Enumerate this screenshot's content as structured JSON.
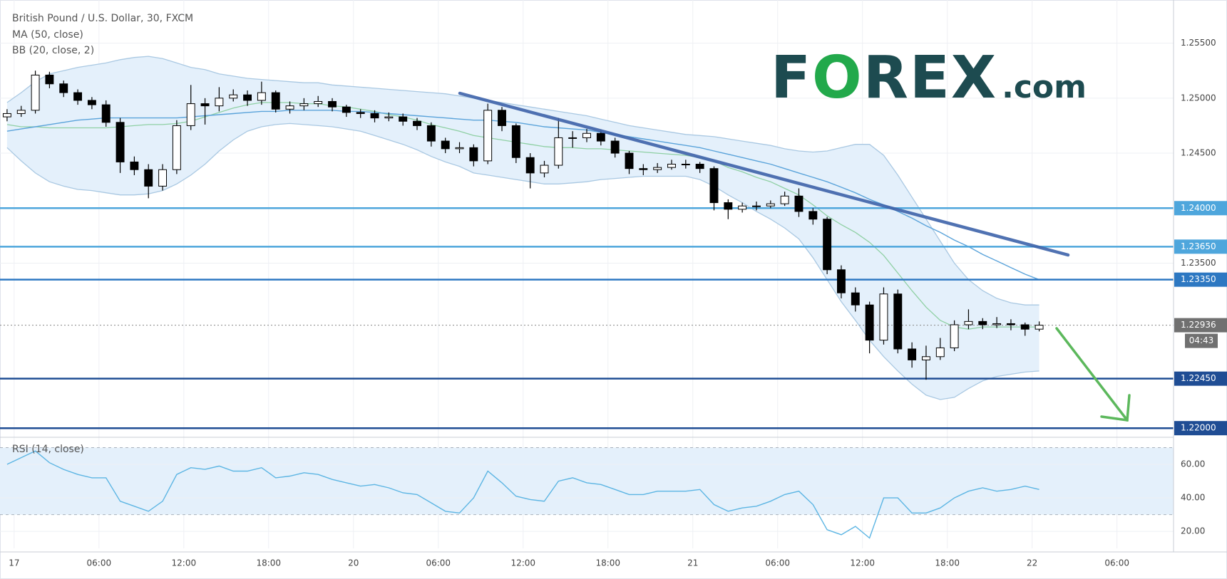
{
  "chart_data": [
    {
      "type": "candlestick",
      "title": "British Pound / U.S. Dollar, 30, FXCM",
      "indicator_labels": [
        "MA (50, close)",
        "BB (20, close, 2)"
      ],
      "open": [
        1.2483,
        1.2486,
        1.2489,
        1.2521,
        1.2513,
        1.2505,
        1.2498,
        1.2494,
        1.2478,
        1.2442,
        1.2435,
        1.242,
        1.2435,
        1.2475,
        1.2495,
        1.2493,
        1.25,
        1.2503,
        1.2498,
        1.2505,
        1.249,
        1.2493,
        1.2495,
        1.2497,
        1.2492,
        1.2487,
        1.2486,
        1.2482,
        1.2483,
        1.2479,
        1.2475,
        1.2461,
        1.2454,
        1.2455,
        1.2443,
        1.2489,
        1.2475,
        1.2446,
        1.2432,
        1.2439,
        1.2464,
        1.2464,
        1.2468,
        1.2461,
        1.245,
        1.2436,
        1.2435,
        1.2437,
        1.244,
        1.244,
        1.2436,
        1.2405,
        1.2399,
        1.2402,
        1.2402,
        1.2404,
        1.2411,
        1.2397,
        1.239,
        1.2344,
        1.2323,
        1.2312,
        1.228,
        1.2322,
        1.2272,
        1.2262,
        1.2265,
        1.2273,
        1.2294,
        1.2297,
        1.2294,
        1.2295,
        1.2294,
        1.229
      ],
      "high": [
        1.249,
        1.2493,
        1.2525,
        1.2524,
        1.2516,
        1.2508,
        1.2501,
        1.2498,
        1.2482,
        1.2447,
        1.244,
        1.244,
        1.248,
        1.2512,
        1.25,
        1.251,
        1.2508,
        1.2507,
        1.2515,
        1.2507,
        1.2497,
        1.25,
        1.2502,
        1.25,
        1.2494,
        1.249,
        1.2489,
        1.2487,
        1.2486,
        1.2482,
        1.2478,
        1.2464,
        1.246,
        1.2458,
        1.2495,
        1.2492,
        1.2477,
        1.245,
        1.2443,
        1.2482,
        1.247,
        1.2472,
        1.2471,
        1.2464,
        1.2452,
        1.244,
        1.2441,
        1.2444,
        1.2444,
        1.2442,
        1.2438,
        1.2408,
        1.2405,
        1.2406,
        1.2407,
        1.2415,
        1.2418,
        1.24,
        1.2392,
        1.2348,
        1.2328,
        1.2315,
        1.2328,
        1.2326,
        1.2278,
        1.2275,
        1.2282,
        1.2298,
        1.2308,
        1.23,
        1.2301,
        1.2299,
        1.2296,
        1.2297
      ],
      "low": [
        1.2479,
        1.2483,
        1.2486,
        1.2509,
        1.2501,
        1.2494,
        1.249,
        1.2474,
        1.2432,
        1.243,
        1.2409,
        1.2416,
        1.2431,
        1.2471,
        1.2476,
        1.2488,
        1.2497,
        1.2493,
        1.2494,
        1.2487,
        1.2486,
        1.2489,
        1.2492,
        1.2488,
        1.2483,
        1.2482,
        1.2478,
        1.2479,
        1.2475,
        1.2471,
        1.2456,
        1.245,
        1.245,
        1.2438,
        1.244,
        1.247,
        1.2441,
        1.2418,
        1.2428,
        1.2436,
        1.2455,
        1.246,
        1.2457,
        1.2446,
        1.2431,
        1.243,
        1.2432,
        1.2435,
        1.2436,
        1.2432,
        1.2398,
        1.239,
        1.2396,
        1.2398,
        1.24,
        1.2402,
        1.2392,
        1.2385,
        1.234,
        1.2318,
        1.2306,
        1.2268,
        1.2276,
        1.2268,
        1.2255,
        1.2244,
        1.2262,
        1.227,
        1.229,
        1.229,
        1.2291,
        1.2289,
        1.2284,
        1.2288
      ],
      "close": [
        1.2486,
        1.2489,
        1.2521,
        1.2513,
        1.2505,
        1.2498,
        1.2494,
        1.2478,
        1.2442,
        1.2435,
        1.242,
        1.2435,
        1.2475,
        1.2495,
        1.2493,
        1.25,
        1.2503,
        1.2498,
        1.2505,
        1.249,
        1.2493,
        1.2495,
        1.2497,
        1.2492,
        1.2487,
        1.2486,
        1.2482,
        1.2483,
        1.2479,
        1.2475,
        1.2461,
        1.2454,
        1.2455,
        1.2443,
        1.2489,
        1.2475,
        1.2446,
        1.2432,
        1.2439,
        1.2464,
        1.2464,
        1.2468,
        1.2461,
        1.245,
        1.2436,
        1.2435,
        1.2437,
        1.244,
        1.244,
        1.2436,
        1.2405,
        1.2399,
        1.2402,
        1.2402,
        1.2404,
        1.2411,
        1.2397,
        1.239,
        1.2344,
        1.2323,
        1.2312,
        1.228,
        1.2322,
        1.2272,
        1.2262,
        1.2265,
        1.2273,
        1.2294,
        1.2297,
        1.2294,
        1.2295,
        1.2294,
        1.229,
        1.22936
      ],
      "bb": {
        "color": "#a9c8e2",
        "fill": "#e4f0fb",
        "basis_color": "#8fd0a4",
        "upper": [
          1.2496,
          1.2505,
          1.2515,
          1.2522,
          1.2525,
          1.2528,
          1.253,
          1.2532,
          1.2535,
          1.2537,
          1.2538,
          1.2536,
          1.2532,
          1.2528,
          1.2526,
          1.2522,
          1.252,
          1.2518,
          1.2517,
          1.2516,
          1.2515,
          1.2514,
          1.2514,
          1.2512,
          1.2511,
          1.251,
          1.2509,
          1.2508,
          1.2507,
          1.2506,
          1.2505,
          1.2504,
          1.2502,
          1.25,
          1.2498,
          1.2496,
          1.2494,
          1.2492,
          1.249,
          1.2488,
          1.2486,
          1.2484,
          1.2481,
          1.2478,
          1.2475,
          1.2473,
          1.2471,
          1.2469,
          1.2467,
          1.2466,
          1.2465,
          1.2463,
          1.2461,
          1.2459,
          1.2457,
          1.2454,
          1.2452,
          1.2451,
          1.2452,
          1.2455,
          1.2458,
          1.2458,
          1.2448,
          1.243,
          1.241,
          1.239,
          1.237,
          1.235,
          1.2335,
          1.2325,
          1.2318,
          1.2314,
          1.2312,
          1.2312
        ],
        "basis": [
          1.2476,
          1.2474,
          1.2474,
          1.2473,
          1.2473,
          1.2473,
          1.2473,
          1.2473,
          1.2474,
          1.2475,
          1.2476,
          1.2476,
          1.2477,
          1.2479,
          1.2483,
          1.2487,
          1.2491,
          1.2494,
          1.2496,
          1.2496,
          1.2496,
          1.2495,
          1.2495,
          1.2493,
          1.2492,
          1.249,
          1.2488,
          1.2485,
          1.2483,
          1.248,
          1.2476,
          1.2473,
          1.247,
          1.2466,
          1.2464,
          1.2462,
          1.246,
          1.2458,
          1.2456,
          1.2455,
          1.2455,
          1.2454,
          1.2454,
          1.2453,
          1.2452,
          1.2451,
          1.245,
          1.2449,
          1.2448,
          1.2446,
          1.2443,
          1.2437,
          1.2433,
          1.2428,
          1.2424,
          1.2418,
          1.2412,
          1.2403,
          1.2393,
          1.2385,
          1.2378,
          1.2369,
          1.2357,
          1.2341,
          1.2325,
          1.231,
          1.2298,
          1.2292,
          1.229,
          1.2292,
          1.2292,
          1.2292,
          1.2292,
          1.2292
        ],
        "lower": [
          1.2455,
          1.2443,
          1.2432,
          1.2424,
          1.242,
          1.2417,
          1.2416,
          1.2414,
          1.2412,
          1.2412,
          1.2413,
          1.2416,
          1.2422,
          1.243,
          1.244,
          1.2452,
          1.2462,
          1.247,
          1.2474,
          1.2476,
          1.2477,
          1.2476,
          1.2475,
          1.2474,
          1.2472,
          1.247,
          1.2466,
          1.2462,
          1.2458,
          1.2453,
          1.2447,
          1.2442,
          1.2438,
          1.2432,
          1.243,
          1.2428,
          1.2426,
          1.2424,
          1.2422,
          1.2422,
          1.2423,
          1.2424,
          1.2426,
          1.2427,
          1.2428,
          1.2429,
          1.2429,
          1.2429,
          1.2429,
          1.2426,
          1.242,
          1.2412,
          1.2405,
          1.2397,
          1.239,
          1.2382,
          1.2372,
          1.2355,
          1.2335,
          1.2315,
          1.2298,
          1.228,
          1.2265,
          1.2252,
          1.224,
          1.223,
          1.2226,
          1.2228,
          1.2236,
          1.2243,
          1.2247,
          1.2249,
          1.2251,
          1.2252
        ]
      },
      "ma50": {
        "color": "#5aa3da",
        "values": [
          1.247,
          1.2472,
          1.2474,
          1.2476,
          1.2478,
          1.248,
          1.2481,
          1.2482,
          1.2482,
          1.2482,
          1.2482,
          1.2482,
          1.2482,
          1.2483,
          1.2484,
          1.2485,
          1.2486,
          1.2487,
          1.2488,
          1.2488,
          1.2489,
          1.2489,
          1.2489,
          1.2489,
          1.2488,
          1.2488,
          1.2487,
          1.2486,
          1.2485,
          1.2484,
          1.2483,
          1.2482,
          1.2481,
          1.248,
          1.248,
          1.2479,
          1.2478,
          1.2476,
          1.2474,
          1.2473,
          1.2472,
          1.2471,
          1.2469,
          1.2467,
          1.2465,
          1.2463,
          1.2461,
          1.2459,
          1.2457,
          1.2455,
          1.2452,
          1.2449,
          1.2446,
          1.2443,
          1.244,
          1.2436,
          1.2432,
          1.2428,
          1.2424,
          1.2419,
          1.2414,
          1.2408,
          1.2403,
          1.2397,
          1.2391,
          1.2384,
          1.2378,
          1.2371,
          1.2365,
          1.2358,
          1.2352,
          1.2346,
          1.234,
          1.2335
        ]
      },
      "xlim": [
        0,
        83
      ],
      "xticks": [
        {
          "value": 1,
          "label": "17"
        },
        {
          "value": 7,
          "label": "06:00"
        },
        {
          "value": 13,
          "label": "12:00"
        },
        {
          "value": 19,
          "label": "18:00"
        },
        {
          "value": 25,
          "label": "20"
        },
        {
          "value": 31,
          "label": "06:00"
        },
        {
          "value": 37,
          "label": "12:00"
        },
        {
          "value": 43,
          "label": "18:00"
        },
        {
          "value": 49,
          "label": "21"
        },
        {
          "value": 55,
          "label": "06:00"
        },
        {
          "value": 61,
          "label": "12:00"
        },
        {
          "value": 67,
          "label": "18:00"
        },
        {
          "value": 73,
          "label": "22"
        },
        {
          "value": 79,
          "label": "06:00"
        }
      ],
      "ylim": [
        1.2193,
        1.2586
      ],
      "yticks": [
        {
          "value": 1.255,
          "label": "1.25500"
        },
        {
          "value": 1.25,
          "label": "1.25000"
        },
        {
          "value": 1.245,
          "label": "1.24500"
        },
        {
          "value": 1.235,
          "label": "1.23500"
        }
      ],
      "grid": true,
      "levels": [
        {
          "value": 1.24,
          "label": "1.24000",
          "color": "#4ea6dc"
        },
        {
          "value": 1.2365,
          "label": "1.23650",
          "color": "#4ea6dc"
        },
        {
          "value": 1.2335,
          "label": "1.23350",
          "color": "#2d78c2"
        },
        {
          "value": 1.2245,
          "label": "1.22450",
          "color": "#1f4d94"
        },
        {
          "value": 1.22,
          "label": "1.22000",
          "color": "#1f4d94"
        }
      ],
      "last_price": {
        "value": 1.22936,
        "label": "1.22936",
        "countdown": "04:43",
        "color": "#707070"
      }
    },
    {
      "type": "line",
      "title": "RSI (14, close)",
      "color": "#5cb5e3",
      "values": [
        60,
        64,
        68,
        61,
        57,
        54,
        52,
        52,
        38,
        35,
        32,
        38,
        54,
        58,
        57,
        59,
        56,
        56,
        58,
        52,
        53,
        55,
        54,
        51,
        49,
        47,
        48,
        46,
        43,
        42,
        37,
        32,
        31,
        40,
        56,
        49,
        41,
        39,
        38,
        50,
        52,
        49,
        48,
        45,
        42,
        42,
        44,
        44,
        44,
        45,
        36,
        32,
        34,
        35,
        38,
        42,
        44,
        36,
        21,
        18,
        23,
        16,
        40,
        40,
        31,
        31,
        34,
        40,
        44,
        46,
        44,
        45,
        47,
        45
      ],
      "band": [
        30,
        70
      ],
      "band_fill": "#e4f0fb",
      "ylim": [
        10.7,
        74.9
      ],
      "yticks": [
        {
          "value": 20,
          "label": "20.00"
        },
        {
          "value": 40,
          "label": "40.00"
        },
        {
          "value": 60,
          "label": "60.00"
        }
      ]
    }
  ],
  "logo": [
    "F",
    "O",
    "REX",
    ".com"
  ]
}
